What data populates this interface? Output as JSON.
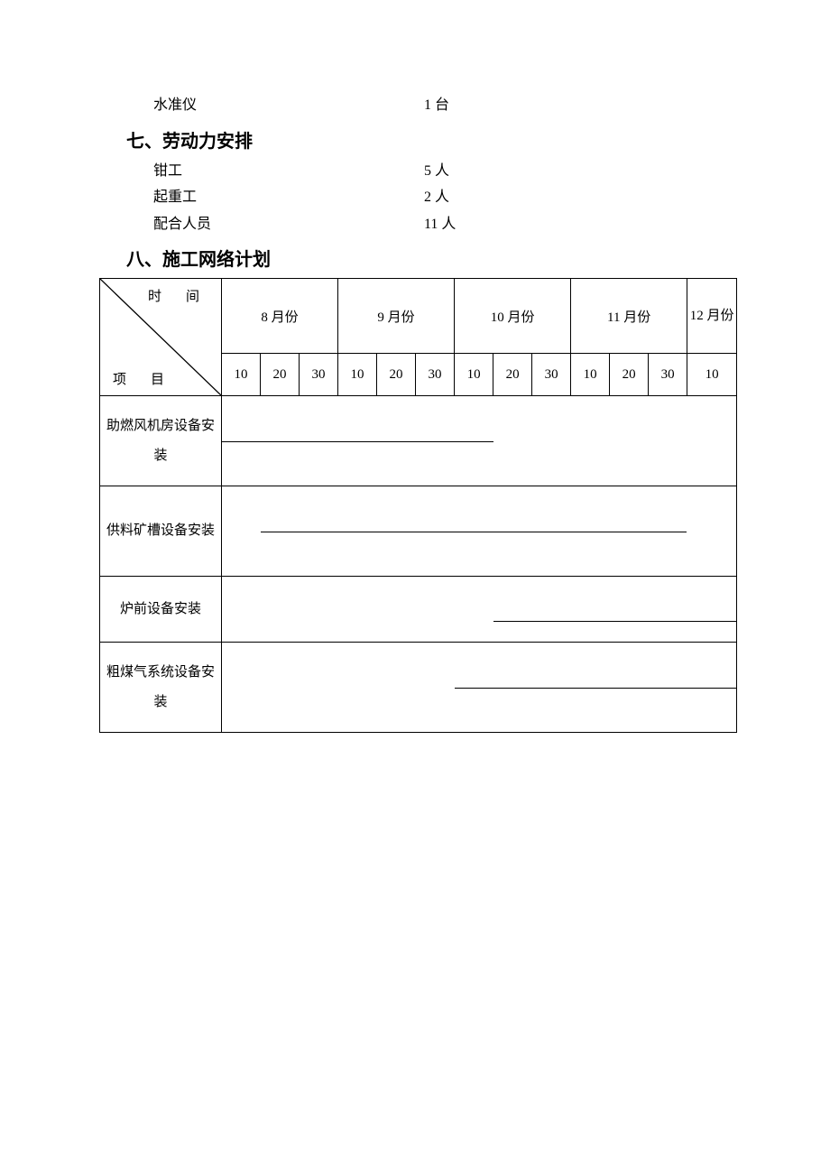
{
  "pre_item": {
    "name": "水准仪",
    "qty": "1 台"
  },
  "section7": {
    "title": "七、劳动力安排",
    "rows": [
      {
        "name": "钳工",
        "qty": "5 人"
      },
      {
        "name": "起重工",
        "qty": "2 人"
      },
      {
        "name": "配合人员",
        "qty": "11 人"
      }
    ]
  },
  "section8": {
    "title": "八、施工网络计划",
    "header": {
      "corner_top": "时　间",
      "corner_bot": "项　目",
      "months": [
        "8 月份",
        "9 月份",
        "10 月份",
        "11 月份",
        "12 月份"
      ],
      "days": [
        "10",
        "20",
        "30",
        "10",
        "20",
        "30",
        "10",
        "20",
        "30",
        "10",
        "20",
        "30",
        "10"
      ]
    },
    "tasks": [
      {
        "name": "助燃风机房设备安装",
        "bar_start_col": 0,
        "bar_end_col": 7,
        "bar_v": 0.5
      },
      {
        "name": "供料矿槽设备安装",
        "bar_start_col": 1,
        "bar_end_col": 12,
        "bar_v": 0.5
      },
      {
        "name": "炉前设备安装",
        "bar_start_col": 7,
        "bar_end_col": 13,
        "bar_v": 0.68,
        "short": true
      },
      {
        "name": "粗煤气系统设备安装",
        "bar_start_col": 6,
        "bar_end_col": 13,
        "bar_v": 0.5
      }
    ],
    "style": {
      "cell_border_color": "#000000",
      "bar_color": "#000000",
      "n_cols": 13
    }
  }
}
